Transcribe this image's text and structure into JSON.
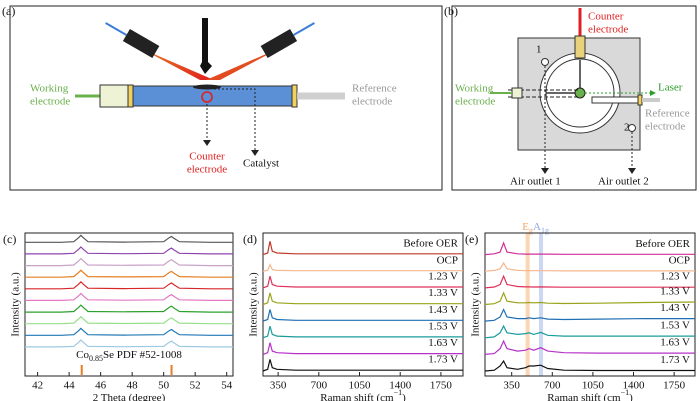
{
  "diagram_a": {
    "label": "(a)",
    "working_electrode": [
      "Working",
      "electrode"
    ],
    "reference_electrode": [
      "Reference",
      "electrode"
    ],
    "counter_electrode": [
      "Counter",
      "electrode"
    ],
    "catalyst": "Catalyst"
  },
  "diagram_b": {
    "label": "(b)",
    "counter_electrode": [
      "Counter",
      "electrode"
    ],
    "working_electrode": [
      "Working",
      "electrode"
    ],
    "laser": "Laser",
    "reference_electrode": [
      "Reference",
      "electrode"
    ],
    "outlet_1_number": "1",
    "outlet_2_number": "2",
    "air_outlet_1": "Air outlet 1",
    "air_outlet_2": "Air outlet 2"
  },
  "chart_data": [
    {
      "type": "line",
      "label": "(c)",
      "xlabel": {
        "text": "2 Theta (degree)"
      },
      "ylabel": "Intensity (a.u.)",
      "xlim": [
        41.2,
        54.4
      ],
      "xticks": [
        42,
        44,
        46,
        48,
        50,
        52,
        54
      ],
      "ylim": [
        0,
        12.3
      ],
      "x": [
        41.2,
        43.5,
        44.3,
        44.6,
        44.75,
        44.9,
        45.2,
        47.5,
        50.0,
        50.35,
        50.5,
        50.65,
        51.0,
        53,
        54.4
      ],
      "reference": {
        "base": "Co",
        "sub": "0.85",
        "tail": "Se PDF #52-1008",
        "positions": [
          44.8,
          50.5
        ],
        "color": "#e67e22"
      },
      "series": [
        {
          "color": "#555555",
          "values": [
            11.5,
            11.5,
            11.55,
            11.9,
            12.1,
            11.9,
            11.55,
            11.52,
            11.55,
            11.9,
            12.0,
            11.85,
            11.55,
            11.5,
            11.5
          ]
        },
        {
          "color": "#8e44ad",
          "values": [
            10.5,
            10.5,
            10.55,
            10.9,
            11.1,
            10.9,
            10.55,
            10.52,
            10.55,
            10.9,
            11.0,
            10.85,
            10.55,
            10.5,
            10.5
          ]
        },
        {
          "color": "#c8a2c8",
          "values": [
            9.5,
            9.5,
            9.55,
            9.9,
            10.1,
            9.9,
            9.55,
            9.52,
            9.55,
            9.9,
            10.0,
            9.85,
            9.55,
            9.5,
            9.5
          ]
        },
        {
          "color": "#e67e22",
          "values": [
            8.5,
            8.5,
            8.55,
            8.9,
            9.1,
            8.9,
            8.55,
            8.52,
            8.55,
            8.9,
            9.0,
            8.85,
            8.55,
            8.5,
            8.5
          ]
        },
        {
          "color": "#d62728",
          "values": [
            7.5,
            7.5,
            7.55,
            7.9,
            8.1,
            7.9,
            7.55,
            7.52,
            7.55,
            7.9,
            8.0,
            7.85,
            7.55,
            7.5,
            7.5
          ]
        },
        {
          "color": "#e377c2",
          "values": [
            6.5,
            6.5,
            6.55,
            6.9,
            7.1,
            6.9,
            6.55,
            6.52,
            6.55,
            6.9,
            7.0,
            6.85,
            6.55,
            6.5,
            6.5
          ]
        },
        {
          "color": "#2ca02c",
          "values": [
            5.5,
            5.5,
            5.55,
            5.9,
            6.1,
            5.9,
            5.55,
            5.52,
            5.55,
            5.9,
            6.0,
            5.85,
            5.55,
            5.5,
            5.5
          ]
        },
        {
          "color": "#98df8a",
          "values": [
            4.5,
            4.5,
            4.55,
            4.9,
            5.1,
            4.9,
            4.55,
            4.52,
            4.55,
            4.9,
            5.0,
            4.85,
            4.55,
            4.5,
            4.5
          ]
        },
        {
          "color": "#1f77b4",
          "values": [
            3.5,
            3.5,
            3.55,
            3.9,
            4.1,
            3.9,
            3.55,
            3.52,
            3.55,
            3.9,
            4.0,
            3.85,
            3.55,
            3.5,
            3.5
          ]
        },
        {
          "color": "#9ecae1",
          "values": [
            2.5,
            2.5,
            2.55,
            2.9,
            3.1,
            2.9,
            2.55,
            2.52,
            2.55,
            2.9,
            3.0,
            2.85,
            2.55,
            2.5,
            2.5
          ]
        }
      ]
    },
    {
      "type": "line",
      "label": "(d)",
      "xlabel": {
        "text": "Raman shift (cm",
        "sup": "−1",
        "tail": ")"
      },
      "ylabel": "Intensity (a.u.)",
      "xlim": [
        220,
        1940
      ],
      "xticks": [
        350,
        700,
        1050,
        1400,
        1750
      ],
      "ylim": [
        0,
        8.6
      ],
      "x": [
        220,
        260,
        280,
        300,
        340,
        500,
        700,
        1000,
        1300,
        1600,
        1940
      ],
      "series": [
        {
          "name": "Before OER",
          "color": "#c0392b",
          "values": [
            7.3,
            7.4,
            8.1,
            7.5,
            7.4,
            7.35,
            7.35,
            7.35,
            7.35,
            7.35,
            7.35
          ]
        },
        {
          "name": "OCP",
          "color": "#f5b78e",
          "values": [
            6.3,
            6.35,
            6.7,
            6.4,
            6.35,
            6.33,
            6.33,
            6.33,
            6.33,
            6.33,
            6.33
          ]
        },
        {
          "name": "1.23 V",
          "color": "#e0315a",
          "values": [
            5.3,
            5.4,
            6.0,
            5.5,
            5.4,
            5.35,
            5.35,
            5.35,
            5.35,
            5.35,
            5.35
          ]
        },
        {
          "name": "1.33 V",
          "color": "#9aa31a",
          "values": [
            4.3,
            4.4,
            5.0,
            4.5,
            4.4,
            4.35,
            4.35,
            4.35,
            4.35,
            4.35,
            4.35
          ]
        },
        {
          "name": "1.43 V",
          "color": "#1f6fb4",
          "values": [
            3.3,
            3.4,
            4.0,
            3.5,
            3.4,
            3.35,
            3.35,
            3.35,
            3.35,
            3.35,
            3.35
          ]
        },
        {
          "name": "1.53 V",
          "color": "#1a9b9b",
          "values": [
            2.3,
            2.4,
            3.0,
            2.5,
            2.4,
            2.35,
            2.35,
            2.35,
            2.35,
            2.35,
            2.35
          ]
        },
        {
          "name": "1.63 V",
          "color": "#b531c8",
          "values": [
            1.3,
            1.4,
            2.0,
            1.5,
            1.4,
            1.35,
            1.35,
            1.35,
            1.35,
            1.35,
            1.35
          ]
        },
        {
          "name": "1.73 V",
          "color": "#111111",
          "values": [
            0.3,
            0.4,
            1.0,
            0.5,
            0.4,
            0.35,
            0.35,
            0.35,
            0.35,
            0.35,
            0.35
          ]
        }
      ]
    },
    {
      "type": "line",
      "label": "(e)",
      "xlabel": {
        "text": "Raman shift (cm",
        "sup": "−1",
        "tail": ")"
      },
      "ylabel": "Intensity (a.u.)",
      "xlim": [
        120,
        1930
      ],
      "xticks": [
        350,
        700,
        1050,
        1400,
        1750
      ],
      "ylim": [
        0,
        8.6
      ],
      "x": [
        120,
        200,
        250,
        280,
        310,
        400,
        470,
        500,
        540,
        600,
        660,
        800,
        1100,
        1500,
        1930
      ],
      "bands": [
        {
          "base": "E",
          "sub": "g",
          "xrange": [
            470,
            505
          ],
          "color": "#f4a460"
        },
        {
          "base": "A",
          "sub": "1g",
          "xrange": [
            585,
            620
          ],
          "color": "#8fa8e0"
        }
      ],
      "series": [
        {
          "name": "Before OER",
          "color": "#d0309a",
          "values": [
            7.3,
            7.35,
            7.45,
            8.0,
            7.45,
            7.35,
            7.33,
            7.33,
            7.33,
            7.33,
            7.33,
            7.32,
            7.32,
            7.32,
            7.32
          ]
        },
        {
          "name": "OCP",
          "color": "#f5b78e",
          "values": [
            6.3,
            6.35,
            6.45,
            6.8,
            6.45,
            6.35,
            6.33,
            6.33,
            6.33,
            6.33,
            6.33,
            6.32,
            6.32,
            6.32,
            6.32
          ]
        },
        {
          "name": "1.23 V",
          "color": "#e0315a",
          "values": [
            5.3,
            5.35,
            5.5,
            6.0,
            5.5,
            5.38,
            5.36,
            5.36,
            5.35,
            5.36,
            5.35,
            5.34,
            5.34,
            5.34,
            5.34
          ]
        },
        {
          "name": "1.33 V",
          "color": "#9aa31a",
          "values": [
            4.3,
            4.35,
            4.5,
            5.0,
            4.5,
            4.4,
            4.4,
            4.42,
            4.4,
            4.42,
            4.38,
            4.36,
            4.38,
            4.42,
            4.45
          ]
        },
        {
          "name": "1.43 V",
          "color": "#1f6fb4",
          "values": [
            3.3,
            3.35,
            3.55,
            4.0,
            3.55,
            3.45,
            3.45,
            3.5,
            3.45,
            3.5,
            3.42,
            3.4,
            3.42,
            3.45,
            3.45
          ]
        },
        {
          "name": "1.53 V",
          "color": "#1a9b9b",
          "values": [
            2.3,
            2.35,
            2.6,
            3.0,
            2.6,
            2.5,
            2.55,
            2.6,
            2.5,
            2.62,
            2.45,
            2.4,
            2.4,
            2.4,
            2.4
          ]
        },
        {
          "name": "1.63 V",
          "color": "#b531c8",
          "values": [
            1.3,
            1.35,
            1.65,
            2.1,
            1.65,
            1.5,
            1.55,
            1.65,
            1.55,
            1.7,
            1.5,
            1.4,
            1.38,
            1.38,
            1.38
          ]
        },
        {
          "name": "1.73 V",
          "color": "#111111",
          "values": [
            0.3,
            0.35,
            0.6,
            0.9,
            0.5,
            0.4,
            0.5,
            0.6,
            0.6,
            0.65,
            0.45,
            0.35,
            0.33,
            0.33,
            0.33
          ]
        }
      ]
    }
  ]
}
